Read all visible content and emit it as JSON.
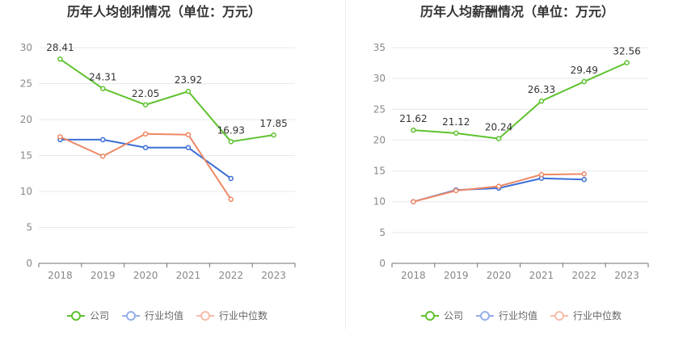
{
  "chart_data": [
    {
      "type": "line",
      "title": "历年人均创利情况（单位：万元）",
      "categories": [
        "2018",
        "2019",
        "2020",
        "2021",
        "2022",
        "2023"
      ],
      "ylim": [
        0,
        30
      ],
      "yticks": [
        0,
        5,
        10,
        15,
        20,
        25,
        30
      ],
      "grid": true,
      "legend": "bottom-center",
      "series": [
        {
          "name": "公司",
          "color": "#5ec22f",
          "show_labels": true,
          "values": [
            28.41,
            24.31,
            22.05,
            23.92,
            16.93,
            17.85
          ]
        },
        {
          "name": "行业均值",
          "color": "#3d6fd6",
          "show_labels": false,
          "values": [
            17.2,
            17.2,
            16.1,
            16.1,
            11.8,
            null
          ]
        },
        {
          "name": "行业中位数",
          "color": "#ee8866",
          "show_labels": false,
          "values": [
            17.6,
            14.9,
            18.0,
            17.9,
            8.9,
            null
          ]
        }
      ]
    },
    {
      "type": "line",
      "title": "历年人均薪酬情况（单位：万元）",
      "categories": [
        "2018",
        "2019",
        "2020",
        "2021",
        "2022",
        "2023"
      ],
      "ylim": [
        0,
        35
      ],
      "yticks": [
        0,
        5,
        10,
        15,
        20,
        25,
        30,
        35
      ],
      "grid": true,
      "legend": "bottom-center",
      "series": [
        {
          "name": "公司",
          "color": "#5ec22f",
          "show_labels": true,
          "values": [
            21.62,
            21.12,
            20.24,
            26.33,
            29.49,
            32.56
          ]
        },
        {
          "name": "行业均值",
          "color": "#3d6fd6",
          "show_labels": false,
          "values": [
            10.0,
            11.9,
            12.2,
            13.8,
            13.6,
            null
          ]
        },
        {
          "name": "行业中位数",
          "color": "#ee8866",
          "show_labels": false,
          "values": [
            10.0,
            11.8,
            12.5,
            14.4,
            14.5,
            null
          ]
        }
      ]
    }
  ]
}
